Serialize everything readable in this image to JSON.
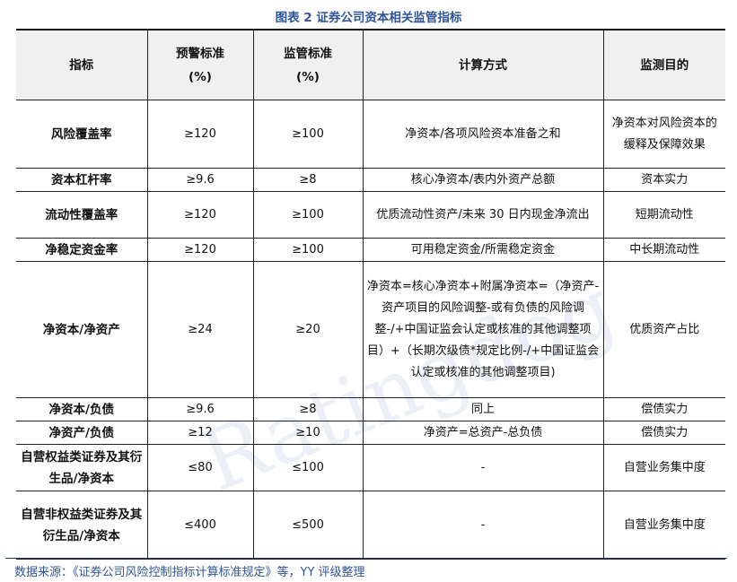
{
  "title": "图表 2 证券公司资本相关监管指标",
  "headers": [
    "指标",
    "预警标准(%)",
    "监管标准(%)",
    "计算方式",
    "监测目的"
  ],
  "header_lines": [
    [
      "指标"
    ],
    [
      "预警标准",
      "(%)"
    ],
    [
      "监管标准",
      "(%)"
    ],
    [
      "计算方式"
    ],
    [
      "监测目的"
    ]
  ],
  "rows": [
    {
      "name": "风险覆盖率",
      "warning": "≥120",
      "regulatory": "≥100",
      "method": "净资本/各项风险资本准备之和",
      "purpose": "净资本对风险资本的缓释及保障效果"
    },
    {
      "name": "资本杠杆率",
      "warning": "≥9.6",
      "regulatory": "≥8",
      "method": "核心净资本/表内外资产总额",
      "purpose": "资本实力"
    },
    {
      "name": "流动性覆盖率",
      "warning": "≥120",
      "regulatory": "≥100",
      "method": "优质流动性资产/未来 30 日内现金净流出",
      "purpose": "短期流动性"
    },
    {
      "name": "净稳定资金率",
      "warning": "≥120",
      "regulatory": "≥100",
      "method": "可用稳定资金/所需稳定资金",
      "purpose": "中长期流动性"
    },
    {
      "name": "净资本/净资产",
      "warning": "≥24",
      "regulatory": "≥20",
      "method": "净资本=核心净资本+附属净资本=（净资产-资产项目的风险调整-或有负债的风险调整-/+中国证监会认定或核准的其他调整项目）+（长期次级债*规定比例-/+中国证监会认定或核准的其他调整项目)",
      "purpose": "优质资产占比"
    },
    {
      "name": "净资本/负债",
      "warning": "≥9.6",
      "regulatory": "≥8",
      "method": "同上",
      "purpose": "偿债实力"
    },
    {
      "name": "净资产/负债",
      "warning": "≥12",
      "regulatory": "≥10",
      "method": "净资产=总资产-总负债",
      "purpose": "偿债实力"
    },
    {
      "name": "自营权益类证券及其衍生品/净资本",
      "warning": "≤80",
      "regulatory": "≤100",
      "method": "-",
      "purpose": "自营业务集中度"
    },
    {
      "name": "自营非权益类证券及其衍生品/净资本",
      "warning": "≤400",
      "regulatory": "≤500",
      "method": "-",
      "purpose": "自营业务集中度"
    }
  ],
  "footer": "数据来源：《证券公司风险控制指标计算标准规定》等，YY 评级整理",
  "watermark": "Ratingdog",
  "colors": {
    "title": "#2f5597",
    "header_bg": "#f0f0f0",
    "footer": "#2f5597"
  }
}
